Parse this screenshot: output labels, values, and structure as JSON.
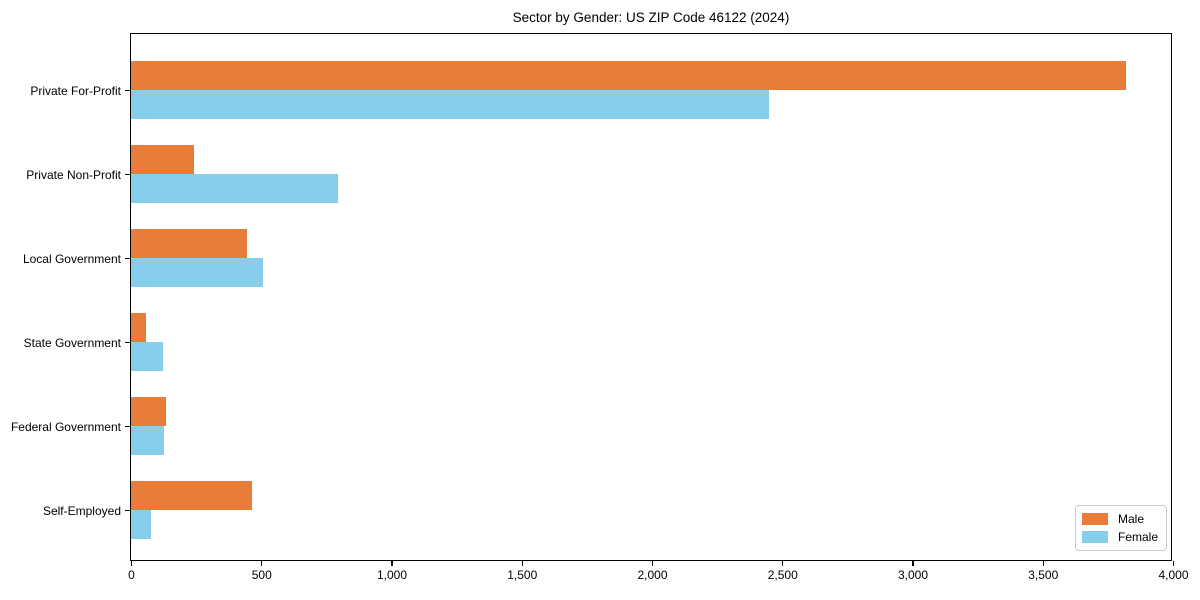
{
  "title": "Sector by Gender: US ZIP Code 46122 (2024)",
  "colors": {
    "male": "#E87D3B",
    "female": "#87CEEB",
    "axis": "#000000",
    "legend_border": "#CCCCCC",
    "background": "#FFFFFF"
  },
  "chart_data": {
    "type": "bar",
    "orientation": "horizontal",
    "title": "Sector by Gender: US ZIP Code 46122 (2024)",
    "xlabel": "",
    "ylabel": "",
    "categories": [
      "Private For-Profit",
      "Private Non-Profit",
      "Local Government",
      "State Government",
      "Federal Government",
      "Self-Employed"
    ],
    "series": [
      {
        "name": "Male",
        "color": "#E87D3B",
        "values": [
          3820,
          240,
          445,
          58,
          134,
          465
        ]
      },
      {
        "name": "Female",
        "color": "#87CEEB",
        "values": [
          2450,
          795,
          505,
          122,
          127,
          77
        ]
      }
    ],
    "xlim": [
      0,
      4000
    ],
    "xticks": [
      0,
      500,
      1000,
      1500,
      2000,
      2500,
      3000,
      3500,
      4000
    ],
    "xtick_labels": [
      "0",
      "500",
      "1,000",
      "1,500",
      "2,000",
      "2,500",
      "3,000",
      "3,500",
      "4,000"
    ],
    "grid": false,
    "legend_position": "lower right"
  },
  "legend": {
    "items": [
      {
        "label": "Male"
      },
      {
        "label": "Female"
      }
    ]
  }
}
